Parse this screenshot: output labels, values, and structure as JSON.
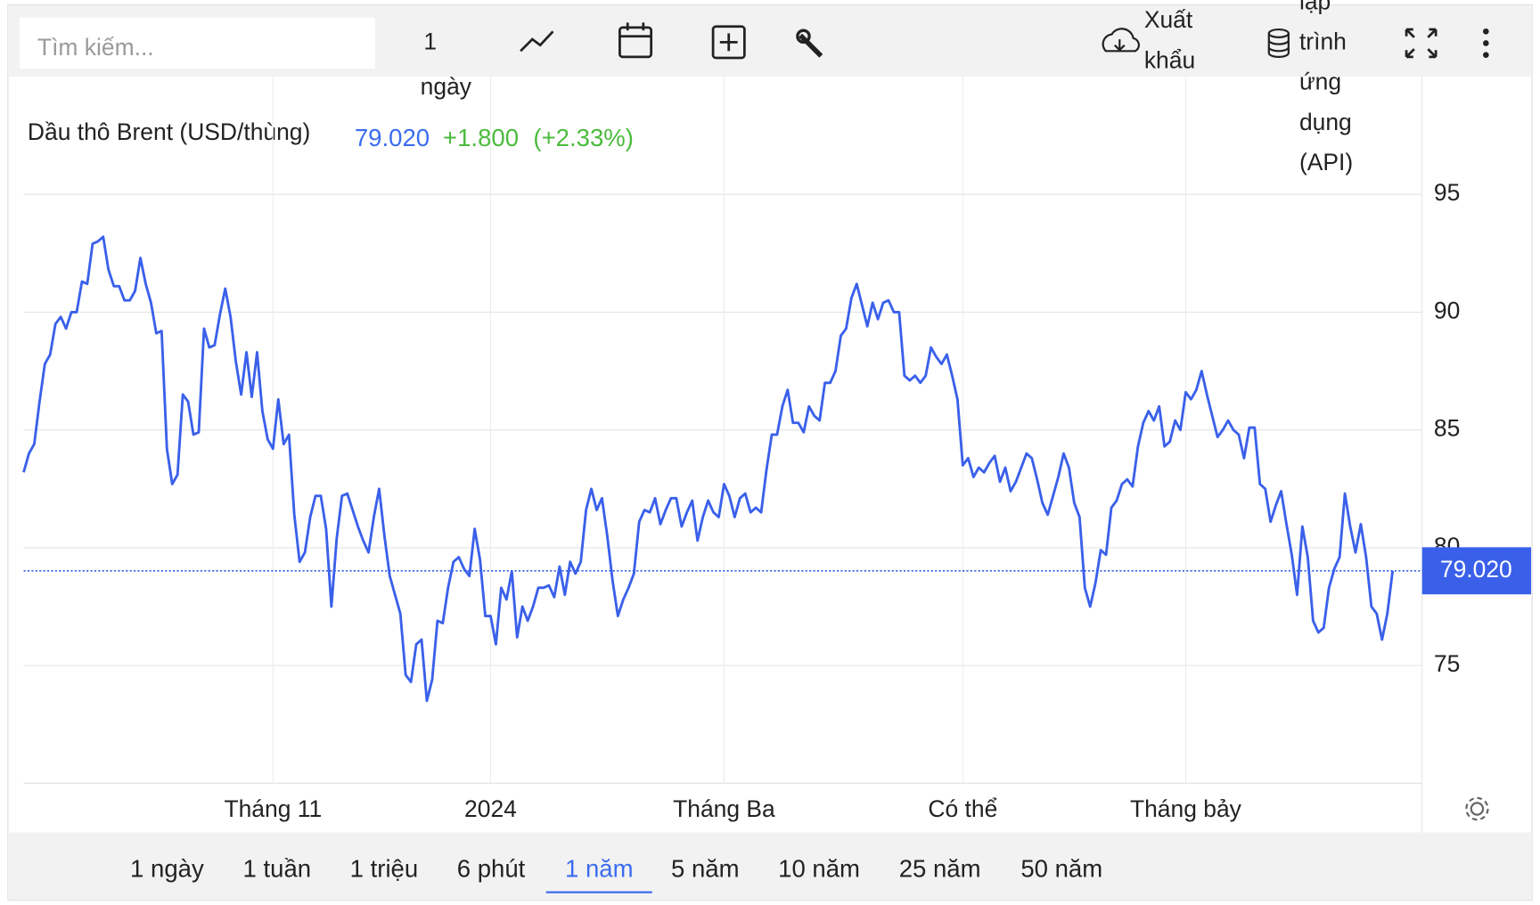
{
  "toolbar": {
    "search_placeholder": "Tìm kiếm...",
    "interval_lines": [
      "1",
      "ngày"
    ],
    "export_lines": [
      "Xuất",
      "khẩu"
    ],
    "api_lines": [
      "lập",
      "trình",
      "ứng",
      "dụng",
      "(API)"
    ]
  },
  "chart_data": {
    "type": "line",
    "title": "Dầu thô Brent (USD/thùng)",
    "last_value": "79.020",
    "change": "+1.800",
    "change_pct": "(+2.33%)",
    "series": [
      {
        "name": "Dầu thô Brent (USD/thùng)",
        "color": "#3a60ea",
        "values": [
          83.2,
          84.0,
          84.4,
          86.2,
          87.8,
          88.2,
          89.5,
          89.8,
          89.3,
          90.0,
          90.0,
          91.3,
          91.2,
          92.9,
          93.0,
          93.2,
          91.8,
          91.1,
          91.1,
          90.5,
          90.5,
          90.9,
          92.3,
          91.2,
          90.4,
          89.1,
          89.2,
          84.2,
          82.7,
          83.1,
          86.5,
          86.2,
          84.8,
          84.9,
          89.3,
          88.5,
          88.6,
          89.9,
          91.0,
          89.8,
          87.9,
          86.5,
          88.3,
          86.4,
          88.3,
          85.8,
          84.6,
          84.2,
          86.3,
          84.4,
          84.8,
          81.4,
          79.4,
          79.8,
          81.3,
          82.2,
          82.2,
          80.8,
          77.5,
          80.4,
          82.2,
          82.3,
          81.6,
          80.9,
          80.3,
          79.8,
          81.3,
          82.5,
          80.5,
          78.8,
          78.0,
          77.2,
          74.6,
          74.3,
          75.9,
          76.1,
          73.5,
          74.4,
          76.9,
          76.8,
          78.3,
          79.4,
          79.6,
          79.1,
          78.8,
          80.8,
          79.5,
          77.1,
          77.1,
          75.9,
          78.3,
          77.8,
          79.0,
          76.2,
          77.5,
          76.9,
          77.5,
          78.3,
          78.3,
          78.4,
          77.9,
          79.2,
          78.0,
          79.4,
          78.9,
          79.4,
          81.6,
          82.5,
          81.6,
          82.1,
          80.5,
          78.6,
          77.1,
          77.8,
          78.3,
          78.9,
          81.1,
          81.6,
          81.5,
          82.1,
          81.0,
          81.6,
          82.1,
          82.1,
          80.9,
          81.5,
          82.0,
          80.3,
          81.3,
          82.0,
          81.5,
          81.3,
          82.7,
          82.2,
          81.3,
          82.1,
          82.3,
          81.5,
          81.7,
          81.5,
          83.3,
          84.8,
          84.8,
          86.0,
          86.7,
          85.3,
          85.3,
          84.9,
          86.0,
          85.6,
          85.4,
          87.0,
          87.0,
          87.5,
          89.0,
          89.3,
          90.6,
          91.2,
          90.3,
          89.4,
          90.4,
          89.7,
          90.4,
          90.5,
          90.0,
          90.0,
          87.3,
          87.1,
          87.3,
          87.0,
          87.3,
          88.5,
          88.1,
          87.8,
          88.2,
          87.3,
          86.3,
          83.5,
          83.8,
          83.0,
          83.4,
          83.2,
          83.6,
          83.9,
          82.8,
          83.4,
          82.4,
          82.8,
          83.4,
          84.0,
          83.8,
          82.9,
          81.9,
          81.4,
          82.2,
          83.0,
          84.0,
          83.4,
          81.9,
          81.3,
          78.3,
          77.5,
          78.5,
          79.9,
          79.7,
          81.7,
          82.0,
          82.7,
          82.9,
          82.6,
          84.3,
          85.3,
          85.8,
          85.4,
          86.0,
          84.3,
          84.5,
          85.4,
          85.0,
          86.6,
          86.3,
          86.7,
          87.5,
          86.5,
          85.6,
          84.7,
          85.0,
          85.4,
          85.0,
          84.8,
          83.8,
          85.1,
          85.1,
          82.7,
          82.5,
          81.1,
          81.8,
          82.4,
          81.0,
          79.7,
          78.0,
          80.9,
          79.6,
          76.9,
          76.4,
          76.6,
          78.3,
          79.1,
          79.6,
          82.3,
          80.9,
          79.8,
          81.0,
          79.6,
          77.5,
          77.2,
          76.1,
          77.2,
          79.02
        ]
      }
    ],
    "xlim": [
      0,
      258
    ],
    "xticks": [
      {
        "value": 47,
        "label": "Tháng 11"
      },
      {
        "value": 88,
        "label": "2024"
      },
      {
        "value": 132,
        "label": "Tháng Ba"
      },
      {
        "value": 177,
        "label": "Có thể"
      },
      {
        "value": 219,
        "label": "Tháng bảy"
      }
    ],
    "ylim": [
      70,
      100
    ],
    "yticks": [
      75,
      80,
      85,
      90,
      95
    ],
    "grid": true,
    "last_marker": {
      "value": 79.02,
      "label": "79.020",
      "color": "#3a60ea"
    }
  },
  "range_buttons": {
    "labels": [
      "1 ngày",
      "1 tuần",
      "1 triệu",
      "6 phút",
      "1 năm",
      "5 năm",
      "10 năm",
      "25 năm",
      "50 năm"
    ],
    "active": 4
  }
}
